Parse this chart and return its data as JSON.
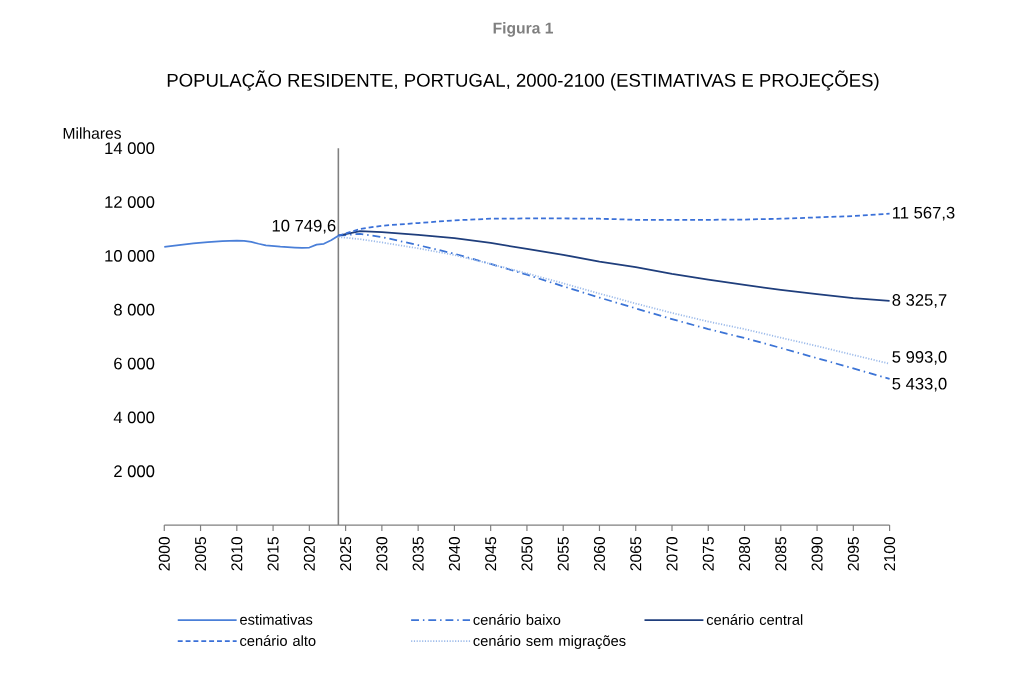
{
  "chart_data": {
    "type": "line",
    "title": "Figura 1",
    "subtitle": "POPULAÇÃO RESIDENTE, PORTUGAL, 2000-2100 (ESTIMATIVAS E PROJEÇÕES)",
    "ylabel": "Milhares",
    "xlim": [
      2000,
      2100
    ],
    "xticks": [
      2000,
      2005,
      2010,
      2015,
      2020,
      2025,
      2030,
      2035,
      2040,
      2045,
      2050,
      2055,
      2060,
      2065,
      2070,
      2075,
      2080,
      2085,
      2090,
      2095,
      2100
    ],
    "ylim": [
      0,
      14000
    ],
    "yticks": [
      {
        "value": 2000,
        "label": "2 000"
      },
      {
        "value": 4000,
        "label": "4 000"
      },
      {
        "value": 6000,
        "label": "6 000"
      },
      {
        "value": 8000,
        "label": "8 000"
      },
      {
        "value": 10000,
        "label": "10 000"
      },
      {
        "value": 12000,
        "label": "12 000"
      },
      {
        "value": 14000,
        "label": "14 000"
      }
    ],
    "grid": false,
    "legend": "bottom",
    "marker": "none",
    "ref_lines": [
      {
        "axis": "x",
        "value": 2024,
        "label": null,
        "color": "#808080"
      }
    ],
    "series": [
      {
        "name": "estimativas",
        "color": "#4a7fd8",
        "line_style": "solid",
        "x": [
          2000,
          2002,
          2004,
          2006,
          2008,
          2010,
          2011,
          2012,
          2013,
          2014,
          2016,
          2018,
          2019,
          2020,
          2021,
          2022,
          2023,
          2024
        ],
        "values": [
          10330,
          10400,
          10460,
          10510,
          10550,
          10570,
          10560,
          10520,
          10450,
          10390,
          10340,
          10310,
          10300,
          10310,
          10420,
          10450,
          10580,
          10749.6
        ],
        "value_labels": [
          null,
          null,
          null,
          null,
          null,
          null,
          null,
          null,
          null,
          null,
          null,
          null,
          null,
          null,
          null,
          null,
          null,
          "10 749,6"
        ]
      },
      {
        "name": "cenário baixo",
        "color": "#3c74d6",
        "line_style": "dashdot",
        "x": [
          2024,
          2027,
          2030,
          2035,
          2040,
          2045,
          2050,
          2055,
          2060,
          2065,
          2070,
          2075,
          2080,
          2085,
          2090,
          2095,
          2100
        ],
        "values": [
          10750,
          10820,
          10700,
          10400,
          10080,
          9700,
          9300,
          8870,
          8450,
          8050,
          7650,
          7280,
          6950,
          6580,
          6200,
          5820,
          5433.0
        ],
        "value_labels": [
          null,
          null,
          null,
          null,
          null,
          null,
          null,
          null,
          null,
          null,
          null,
          null,
          null,
          null,
          null,
          null,
          "5 433,0"
        ]
      },
      {
        "name": "cenário central",
        "color": "#1f3e7c",
        "line_style": "solid",
        "x": [
          2024,
          2027,
          2030,
          2035,
          2040,
          2045,
          2050,
          2055,
          2060,
          2065,
          2070,
          2075,
          2080,
          2085,
          2090,
          2095,
          2100
        ],
        "values": [
          10750,
          10920,
          10880,
          10780,
          10660,
          10480,
          10260,
          10040,
          9790,
          9580,
          9330,
          9120,
          8920,
          8740,
          8580,
          8430,
          8325.7
        ],
        "value_labels": [
          null,
          null,
          null,
          null,
          null,
          null,
          null,
          null,
          null,
          null,
          null,
          null,
          null,
          null,
          null,
          null,
          "8 325,7"
        ]
      },
      {
        "name": "cenário alto",
        "color": "#3a70d8",
        "line_style": "dashed",
        "x": [
          2024,
          2027,
          2030,
          2035,
          2040,
          2045,
          2050,
          2055,
          2060,
          2065,
          2070,
          2075,
          2080,
          2085,
          2090,
          2095,
          2100
        ],
        "values": [
          10750,
          11000,
          11120,
          11220,
          11320,
          11380,
          11390,
          11390,
          11380,
          11340,
          11340,
          11340,
          11350,
          11380,
          11430,
          11480,
          11567.3
        ],
        "value_labels": [
          null,
          null,
          null,
          null,
          null,
          null,
          null,
          null,
          null,
          null,
          null,
          null,
          null,
          null,
          null,
          null,
          "11 567,3"
        ]
      },
      {
        "name": "cenário sem migrações",
        "color": "#9dbbea",
        "line_style": "dotted",
        "x": [
          2024,
          2027,
          2030,
          2035,
          2040,
          2045,
          2050,
          2055,
          2060,
          2065,
          2070,
          2075,
          2080,
          2085,
          2090,
          2095,
          2100
        ],
        "values": [
          10700,
          10620,
          10500,
          10280,
          10030,
          9700,
          9350,
          8980,
          8600,
          8230,
          7880,
          7560,
          7280,
          6960,
          6650,
          6320,
          5993.0
        ],
        "value_labels": [
          null,
          null,
          null,
          null,
          null,
          null,
          null,
          null,
          null,
          null,
          null,
          null,
          null,
          null,
          null,
          null,
          "5 993,0"
        ]
      }
    ]
  }
}
